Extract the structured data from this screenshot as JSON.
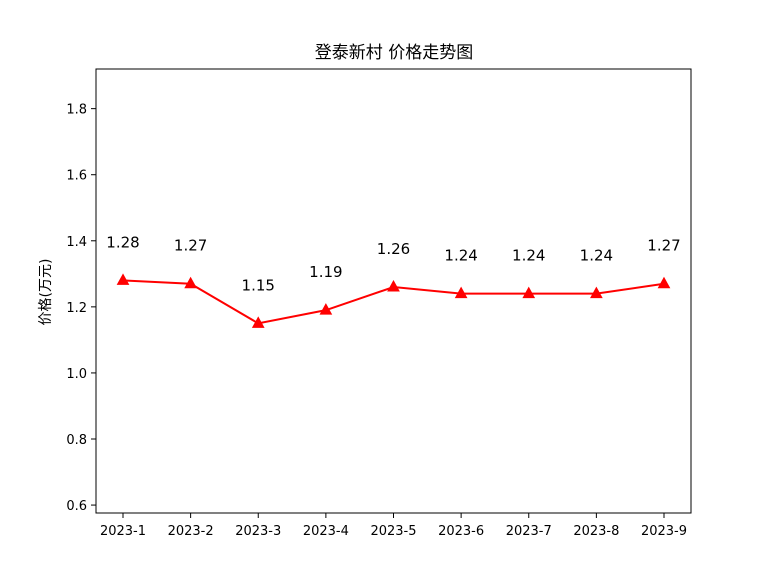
{
  "chart_data": {
    "type": "line",
    "title": "登泰新村 价格走势图",
    "xlabel": "",
    "ylabel": "价格(万元)",
    "categories": [
      "2023-1",
      "2023-2",
      "2023-3",
      "2023-4",
      "2023-5",
      "2023-6",
      "2023-7",
      "2023-8",
      "2023-9"
    ],
    "series": [
      {
        "values": [
          1.28,
          1.27,
          1.15,
          1.19,
          1.26,
          1.24,
          1.24,
          1.24,
          1.27
        ],
        "labels": [
          "1.28",
          "1.27",
          "1.15",
          "1.19",
          "1.26",
          "1.24",
          "1.24",
          "1.24",
          "1.27"
        ],
        "color": "#ff0000",
        "marker": "triangle"
      }
    ],
    "ylim": [
      0.576,
      1.92
    ],
    "yticks": [
      0.6,
      0.8,
      1.0,
      1.2,
      1.4,
      1.6,
      1.8
    ],
    "ytick_labels": [
      "0.6",
      "0.8",
      "1.0",
      "1.2",
      "1.4",
      "1.6",
      "1.8"
    ],
    "grid": false,
    "legend": "none"
  }
}
